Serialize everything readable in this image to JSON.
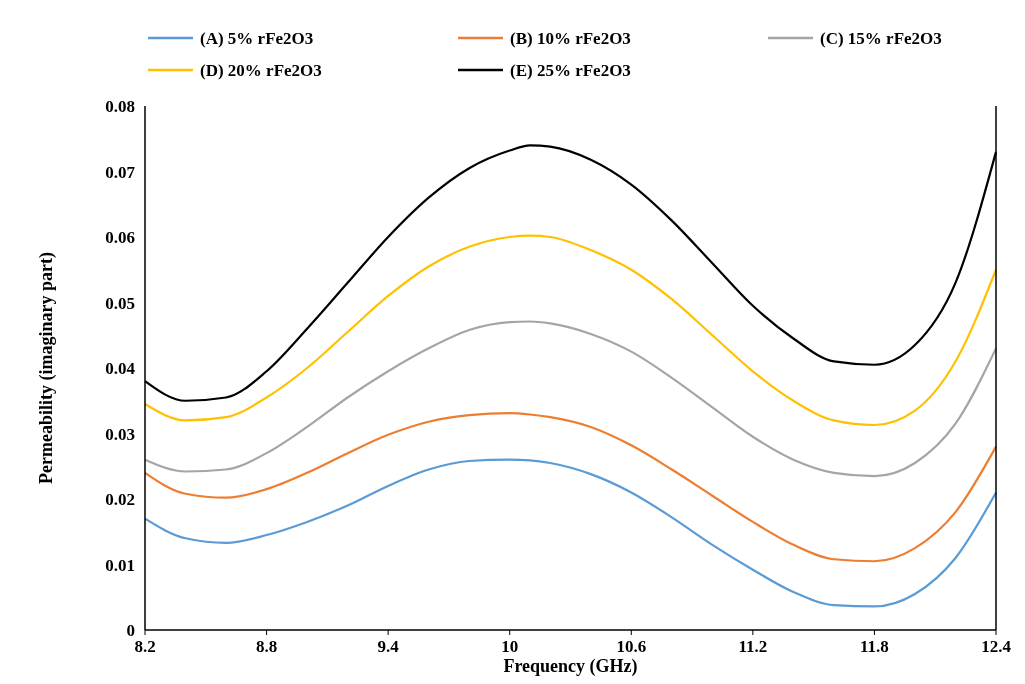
{
  "chart_data": {
    "type": "line",
    "xlabel": "Frequency (GHz)",
    "ylabel": "Permeability (imaginary part)",
    "x": [
      8.2,
      8.4,
      8.6,
      8.8,
      9.0,
      9.2,
      9.4,
      9.6,
      9.8,
      10.0,
      10.1,
      10.2,
      10.4,
      10.6,
      10.8,
      11.0,
      11.2,
      11.4,
      11.6,
      11.8,
      12.0,
      12.2,
      12.4
    ],
    "series": [
      {
        "name": "(A) 5% rFe2O3",
        "color": "#5b9bd5",
        "values": [
          0.017,
          0.014,
          0.0133,
          0.0145,
          0.0165,
          0.019,
          0.022,
          0.0245,
          0.0258,
          0.026,
          0.0259,
          0.0255,
          0.0238,
          0.021,
          0.0172,
          0.013,
          0.0092,
          0.0058,
          0.0038,
          0.0036,
          0.0055,
          0.011,
          0.021
        ]
      },
      {
        "name": "(B) 10% rFe2O3",
        "color": "#ed7d31",
        "values": [
          0.024,
          0.0208,
          0.0202,
          0.0215,
          0.024,
          0.027,
          0.0298,
          0.0318,
          0.0328,
          0.0331,
          0.0329,
          0.0325,
          0.031,
          0.0282,
          0.0245,
          0.0205,
          0.0165,
          0.013,
          0.0108,
          0.0105,
          0.0125,
          0.018,
          0.028
        ]
      },
      {
        "name": "(C) 15% rFe2O3",
        "color": "#a5a5a5",
        "values": [
          0.026,
          0.0242,
          0.0245,
          0.027,
          0.031,
          0.0355,
          0.0395,
          0.043,
          0.0458,
          0.047,
          0.0471,
          0.0468,
          0.0452,
          0.0425,
          0.0385,
          0.034,
          0.0295,
          0.026,
          0.024,
          0.0235,
          0.0255,
          0.0315,
          0.043
        ]
      },
      {
        "name": "(D) 20% rFe2O3",
        "color": "#ffc000",
        "values": [
          0.0345,
          0.032,
          0.0325,
          0.0355,
          0.04,
          0.0455,
          0.051,
          0.0555,
          0.0585,
          0.06,
          0.0602,
          0.06,
          0.058,
          0.055,
          0.0505,
          0.045,
          0.0395,
          0.035,
          0.032,
          0.0313,
          0.0335,
          0.041,
          0.055
        ]
      },
      {
        "name": "(E) 25% rFe2O3",
        "color": "#000000",
        "values": [
          0.038,
          0.035,
          0.0355,
          0.0395,
          0.046,
          0.053,
          0.06,
          0.066,
          0.0705,
          0.0732,
          0.074,
          0.0738,
          0.0718,
          0.068,
          0.0625,
          0.056,
          0.0495,
          0.0445,
          0.041,
          0.0405,
          0.0435,
          0.053,
          0.073
        ]
      }
    ],
    "xlim": [
      8.2,
      12.4
    ],
    "xticks": [
      8.2,
      8.8,
      9.4,
      10,
      10.6,
      11.2,
      11.8,
      12.4
    ],
    "ylim": [
      0,
      0.08
    ],
    "yticks": [
      0,
      0.01,
      0.02,
      0.03,
      0.04,
      0.05,
      0.06,
      0.07,
      0.08
    ],
    "grid": false,
    "legend": "top",
    "marker": "none",
    "line_style": "solid"
  }
}
